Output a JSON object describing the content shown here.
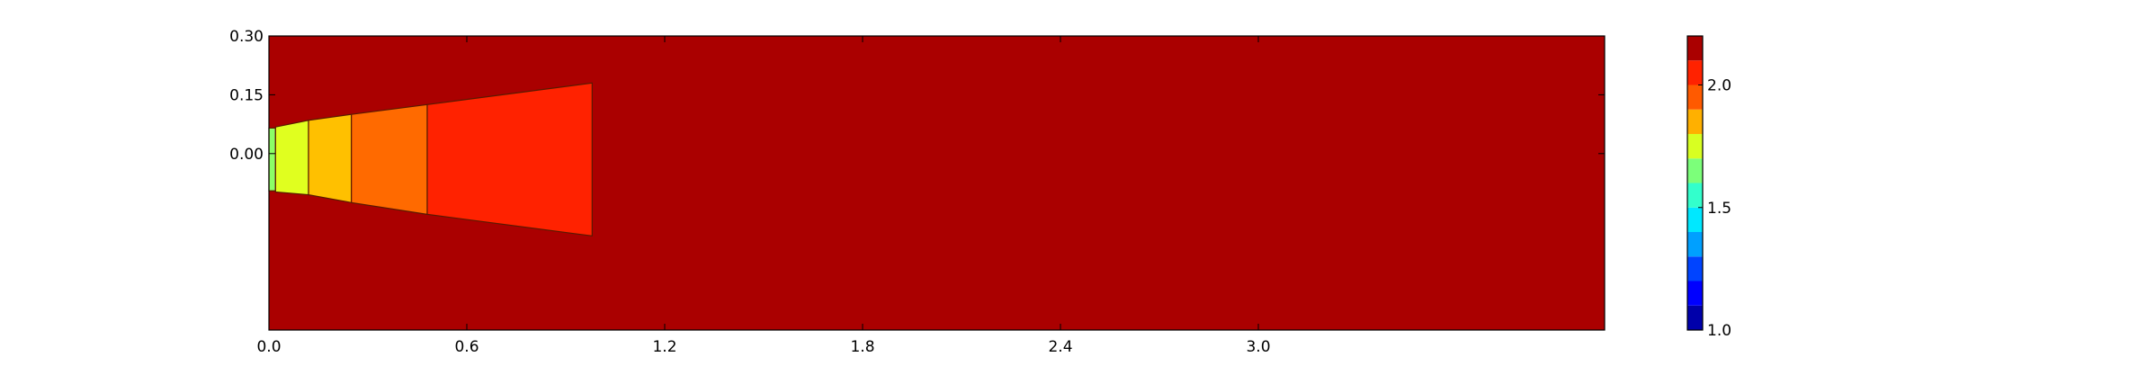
{
  "chart_data": {
    "type": "heatmap",
    "title": "",
    "xlabel": "",
    "ylabel": "",
    "xlim": [
      0.0,
      4.05
    ],
    "ylim": [
      -0.45,
      0.3
    ],
    "xticks": [
      {
        "value": 0.0,
        "label": "0.0"
      },
      {
        "value": 0.6,
        "label": "0.6"
      },
      {
        "value": 1.2,
        "label": "1.2"
      },
      {
        "value": 1.8,
        "label": "1.8"
      },
      {
        "value": 2.4,
        "label": "2.4"
      },
      {
        "value": 3.0,
        "label": "3.0"
      }
    ],
    "yticks": [
      {
        "value": 0.3,
        "label": "0.30"
      },
      {
        "value": 0.15,
        "label": "0.15"
      },
      {
        "value": 0.0,
        "label": "0.00"
      }
    ],
    "background": {
      "value": 2.2,
      "color": "#aa0000"
    },
    "regions": [
      {
        "x": [
          0.0,
          0.02
        ],
        "value": 1.55,
        "color": "#8cff66",
        "y_top": [
          0.065,
          0.065
        ],
        "y_bottom": [
          -0.095,
          -0.095
        ]
      },
      {
        "x": [
          0.02,
          0.12
        ],
        "value": 1.75,
        "color": "#e0ff1f",
        "y_top": [
          0.068,
          0.085
        ],
        "y_bottom": [
          -0.098,
          -0.105
        ]
      },
      {
        "x": [
          0.12,
          0.25
        ],
        "value": 1.85,
        "color": "#ffc000",
        "y_top": [
          0.085,
          0.1
        ],
        "y_bottom": [
          -0.105,
          -0.125
        ]
      },
      {
        "x": [
          0.25,
          0.48
        ],
        "value": 1.95,
        "color": "#ff6a00",
        "y_top": [
          0.1,
          0.125
        ],
        "y_bottom": [
          -0.125,
          -0.155
        ]
      },
      {
        "x": [
          0.48,
          0.98
        ],
        "value": 2.05,
        "color": "#ff2200",
        "y_top": [
          0.125,
          0.18
        ],
        "y_bottom": [
          -0.155,
          -0.21
        ]
      }
    ],
    "colorbar": {
      "range": [
        1.0,
        2.2
      ],
      "ticks": [
        {
          "value": 1.0,
          "label": "1.0"
        },
        {
          "value": 1.5,
          "label": "1.5"
        },
        {
          "value": 2.0,
          "label": "2.0"
        }
      ],
      "levels": [
        {
          "from": 1.0,
          "to": 1.1,
          "color": "#0000aa"
        },
        {
          "from": 1.1,
          "to": 1.2,
          "color": "#0000ff"
        },
        {
          "from": 1.2,
          "to": 1.3,
          "color": "#0044ff"
        },
        {
          "from": 1.3,
          "to": 1.4,
          "color": "#00a0ff"
        },
        {
          "from": 1.4,
          "to": 1.5,
          "color": "#00e8ff"
        },
        {
          "from": 1.5,
          "to": 1.6,
          "color": "#33ffcc"
        },
        {
          "from": 1.6,
          "to": 1.7,
          "color": "#7cff7a"
        },
        {
          "from": 1.7,
          "to": 1.8,
          "color": "#d8ff22"
        },
        {
          "from": 1.8,
          "to": 1.9,
          "color": "#ffb000"
        },
        {
          "from": 1.9,
          "to": 2.0,
          "color": "#ff5a00"
        },
        {
          "from": 2.0,
          "to": 2.1,
          "color": "#ff2200"
        },
        {
          "from": 2.1,
          "to": 2.2,
          "color": "#aa0000"
        }
      ]
    },
    "grid": false,
    "legend": "none"
  }
}
